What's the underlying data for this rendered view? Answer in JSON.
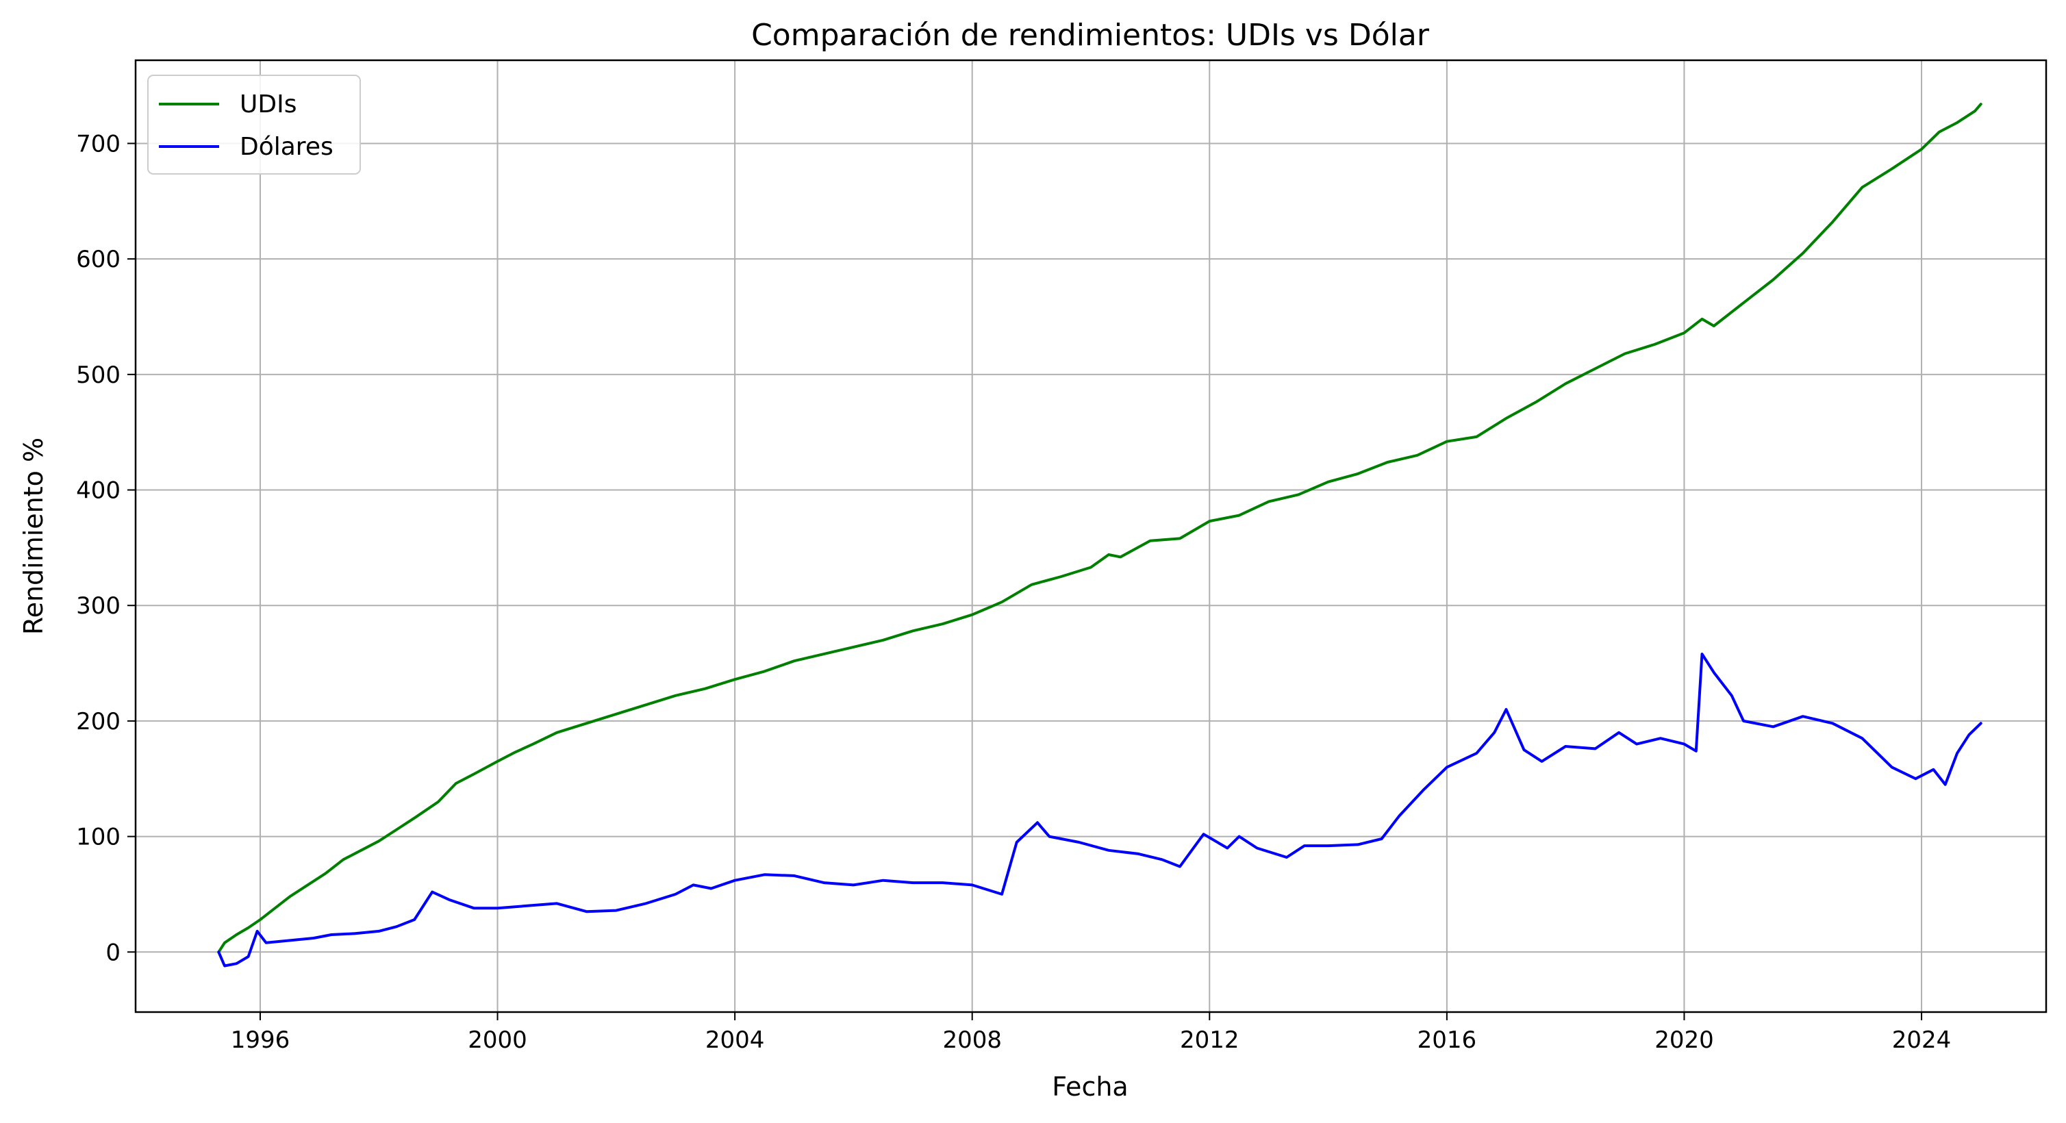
{
  "chart_data": {
    "type": "line",
    "title": "Comparación de rendimientos: UDIs vs Dólar",
    "xlabel": "Fecha",
    "ylabel": "Rendimiento %",
    "xlim": [
      1993.9,
      2026.1
    ],
    "ylim": [
      -52,
      772
    ],
    "x_ticks": [
      1996,
      2000,
      2004,
      2008,
      2012,
      2016,
      2020,
      2024
    ],
    "x_tick_labels": [
      "1996",
      "2000",
      "2004",
      "2008",
      "2012",
      "2016",
      "2020",
      "2024"
    ],
    "y_ticks": [
      0,
      100,
      200,
      300,
      400,
      500,
      600,
      700
    ],
    "y_tick_labels": [
      "0",
      "100",
      "200",
      "300",
      "400",
      "500",
      "600",
      "700"
    ],
    "grid": true,
    "legend_position": "top-left",
    "series": [
      {
        "name": "UDIs",
        "color": "#008000",
        "points": [
          [
            1995.3,
            0
          ],
          [
            1995.4,
            8
          ],
          [
            1995.6,
            15
          ],
          [
            1995.8,
            21
          ],
          [
            1996.0,
            28
          ],
          [
            1996.2,
            36
          ],
          [
            1996.5,
            48
          ],
          [
            1996.8,
            58
          ],
          [
            1997.1,
            68
          ],
          [
            1997.4,
            80
          ],
          [
            1997.7,
            88
          ],
          [
            1998.0,
            96
          ],
          [
            1998.3,
            106
          ],
          [
            1998.6,
            116
          ],
          [
            1999.0,
            130
          ],
          [
            1999.3,
            146
          ],
          [
            1999.6,
            154
          ],
          [
            2000.0,
            165
          ],
          [
            2000.3,
            173
          ],
          [
            2000.6,
            180
          ],
          [
            2001.0,
            190
          ],
          [
            2001.5,
            198
          ],
          [
            2002.0,
            206
          ],
          [
            2002.5,
            214
          ],
          [
            2003.0,
            222
          ],
          [
            2003.5,
            228
          ],
          [
            2004.0,
            236
          ],
          [
            2004.5,
            243
          ],
          [
            2005.0,
            252
          ],
          [
            2005.5,
            258
          ],
          [
            2006.0,
            264
          ],
          [
            2006.5,
            270
          ],
          [
            2007.0,
            278
          ],
          [
            2007.5,
            284
          ],
          [
            2008.0,
            292
          ],
          [
            2008.5,
            303
          ],
          [
            2009.0,
            318
          ],
          [
            2009.5,
            325
          ],
          [
            2010.0,
            333
          ],
          [
            2010.3,
            344
          ],
          [
            2010.5,
            342
          ],
          [
            2011.0,
            356
          ],
          [
            2011.5,
            358
          ],
          [
            2012.0,
            373
          ],
          [
            2012.5,
            378
          ],
          [
            2013.0,
            390
          ],
          [
            2013.5,
            396
          ],
          [
            2014.0,
            407
          ],
          [
            2014.5,
            414
          ],
          [
            2015.0,
            424
          ],
          [
            2015.5,
            430
          ],
          [
            2016.0,
            442
          ],
          [
            2016.5,
            446
          ],
          [
            2017.0,
            462
          ],
          [
            2017.5,
            476
          ],
          [
            2018.0,
            492
          ],
          [
            2018.5,
            505
          ],
          [
            2019.0,
            518
          ],
          [
            2019.5,
            526
          ],
          [
            2020.0,
            536
          ],
          [
            2020.3,
            548
          ],
          [
            2020.5,
            542
          ],
          [
            2021.0,
            562
          ],
          [
            2021.5,
            582
          ],
          [
            2022.0,
            605
          ],
          [
            2022.5,
            632
          ],
          [
            2023.0,
            662
          ],
          [
            2023.5,
            678
          ],
          [
            2024.0,
            695
          ],
          [
            2024.3,
            710
          ],
          [
            2024.6,
            718
          ],
          [
            2024.9,
            728
          ],
          [
            2025.0,
            734
          ]
        ]
      },
      {
        "name": "Dólares",
        "color": "#0000ff",
        "points": [
          [
            1995.3,
            0
          ],
          [
            1995.4,
            -12
          ],
          [
            1995.6,
            -10
          ],
          [
            1995.8,
            -4
          ],
          [
            1995.95,
            18
          ],
          [
            1996.1,
            8
          ],
          [
            1996.5,
            10
          ],
          [
            1996.9,
            12
          ],
          [
            1997.2,
            15
          ],
          [
            1997.6,
            16
          ],
          [
            1998.0,
            18
          ],
          [
            1998.3,
            22
          ],
          [
            1998.6,
            28
          ],
          [
            1998.9,
            52
          ],
          [
            1999.2,
            45
          ],
          [
            1999.6,
            38
          ],
          [
            2000.0,
            38
          ],
          [
            2000.5,
            40
          ],
          [
            2001.0,
            42
          ],
          [
            2001.5,
            35
          ],
          [
            2002.0,
            36
          ],
          [
            2002.5,
            42
          ],
          [
            2003.0,
            50
          ],
          [
            2003.3,
            58
          ],
          [
            2003.6,
            55
          ],
          [
            2004.0,
            62
          ],
          [
            2004.5,
            67
          ],
          [
            2005.0,
            66
          ],
          [
            2005.5,
            60
          ],
          [
            2006.0,
            58
          ],
          [
            2006.5,
            62
          ],
          [
            2007.0,
            60
          ],
          [
            2007.5,
            60
          ],
          [
            2008.0,
            58
          ],
          [
            2008.5,
            50
          ],
          [
            2008.75,
            95
          ],
          [
            2009.1,
            112
          ],
          [
            2009.3,
            100
          ],
          [
            2009.8,
            95
          ],
          [
            2010.3,
            88
          ],
          [
            2010.8,
            85
          ],
          [
            2011.2,
            80
          ],
          [
            2011.5,
            74
          ],
          [
            2011.9,
            102
          ],
          [
            2012.3,
            90
          ],
          [
            2012.5,
            100
          ],
          [
            2012.8,
            90
          ],
          [
            2013.3,
            82
          ],
          [
            2013.6,
            92
          ],
          [
            2014.0,
            92
          ],
          [
            2014.5,
            93
          ],
          [
            2014.9,
            98
          ],
          [
            2015.2,
            118
          ],
          [
            2015.6,
            140
          ],
          [
            2016.0,
            160
          ],
          [
            2016.5,
            172
          ],
          [
            2016.8,
            190
          ],
          [
            2017.0,
            210
          ],
          [
            2017.3,
            175
          ],
          [
            2017.6,
            165
          ],
          [
            2018.0,
            178
          ],
          [
            2018.5,
            176
          ],
          [
            2018.9,
            190
          ],
          [
            2019.2,
            180
          ],
          [
            2019.6,
            185
          ],
          [
            2020.0,
            180
          ],
          [
            2020.2,
            174
          ],
          [
            2020.3,
            258
          ],
          [
            2020.5,
            242
          ],
          [
            2020.8,
            222
          ],
          [
            2021.0,
            200
          ],
          [
            2021.5,
            195
          ],
          [
            2022.0,
            204
          ],
          [
            2022.5,
            198
          ],
          [
            2023.0,
            185
          ],
          [
            2023.5,
            160
          ],
          [
            2023.9,
            150
          ],
          [
            2024.2,
            158
          ],
          [
            2024.4,
            145
          ],
          [
            2024.6,
            172
          ],
          [
            2024.8,
            188
          ],
          [
            2025.0,
            198
          ]
        ]
      }
    ]
  }
}
